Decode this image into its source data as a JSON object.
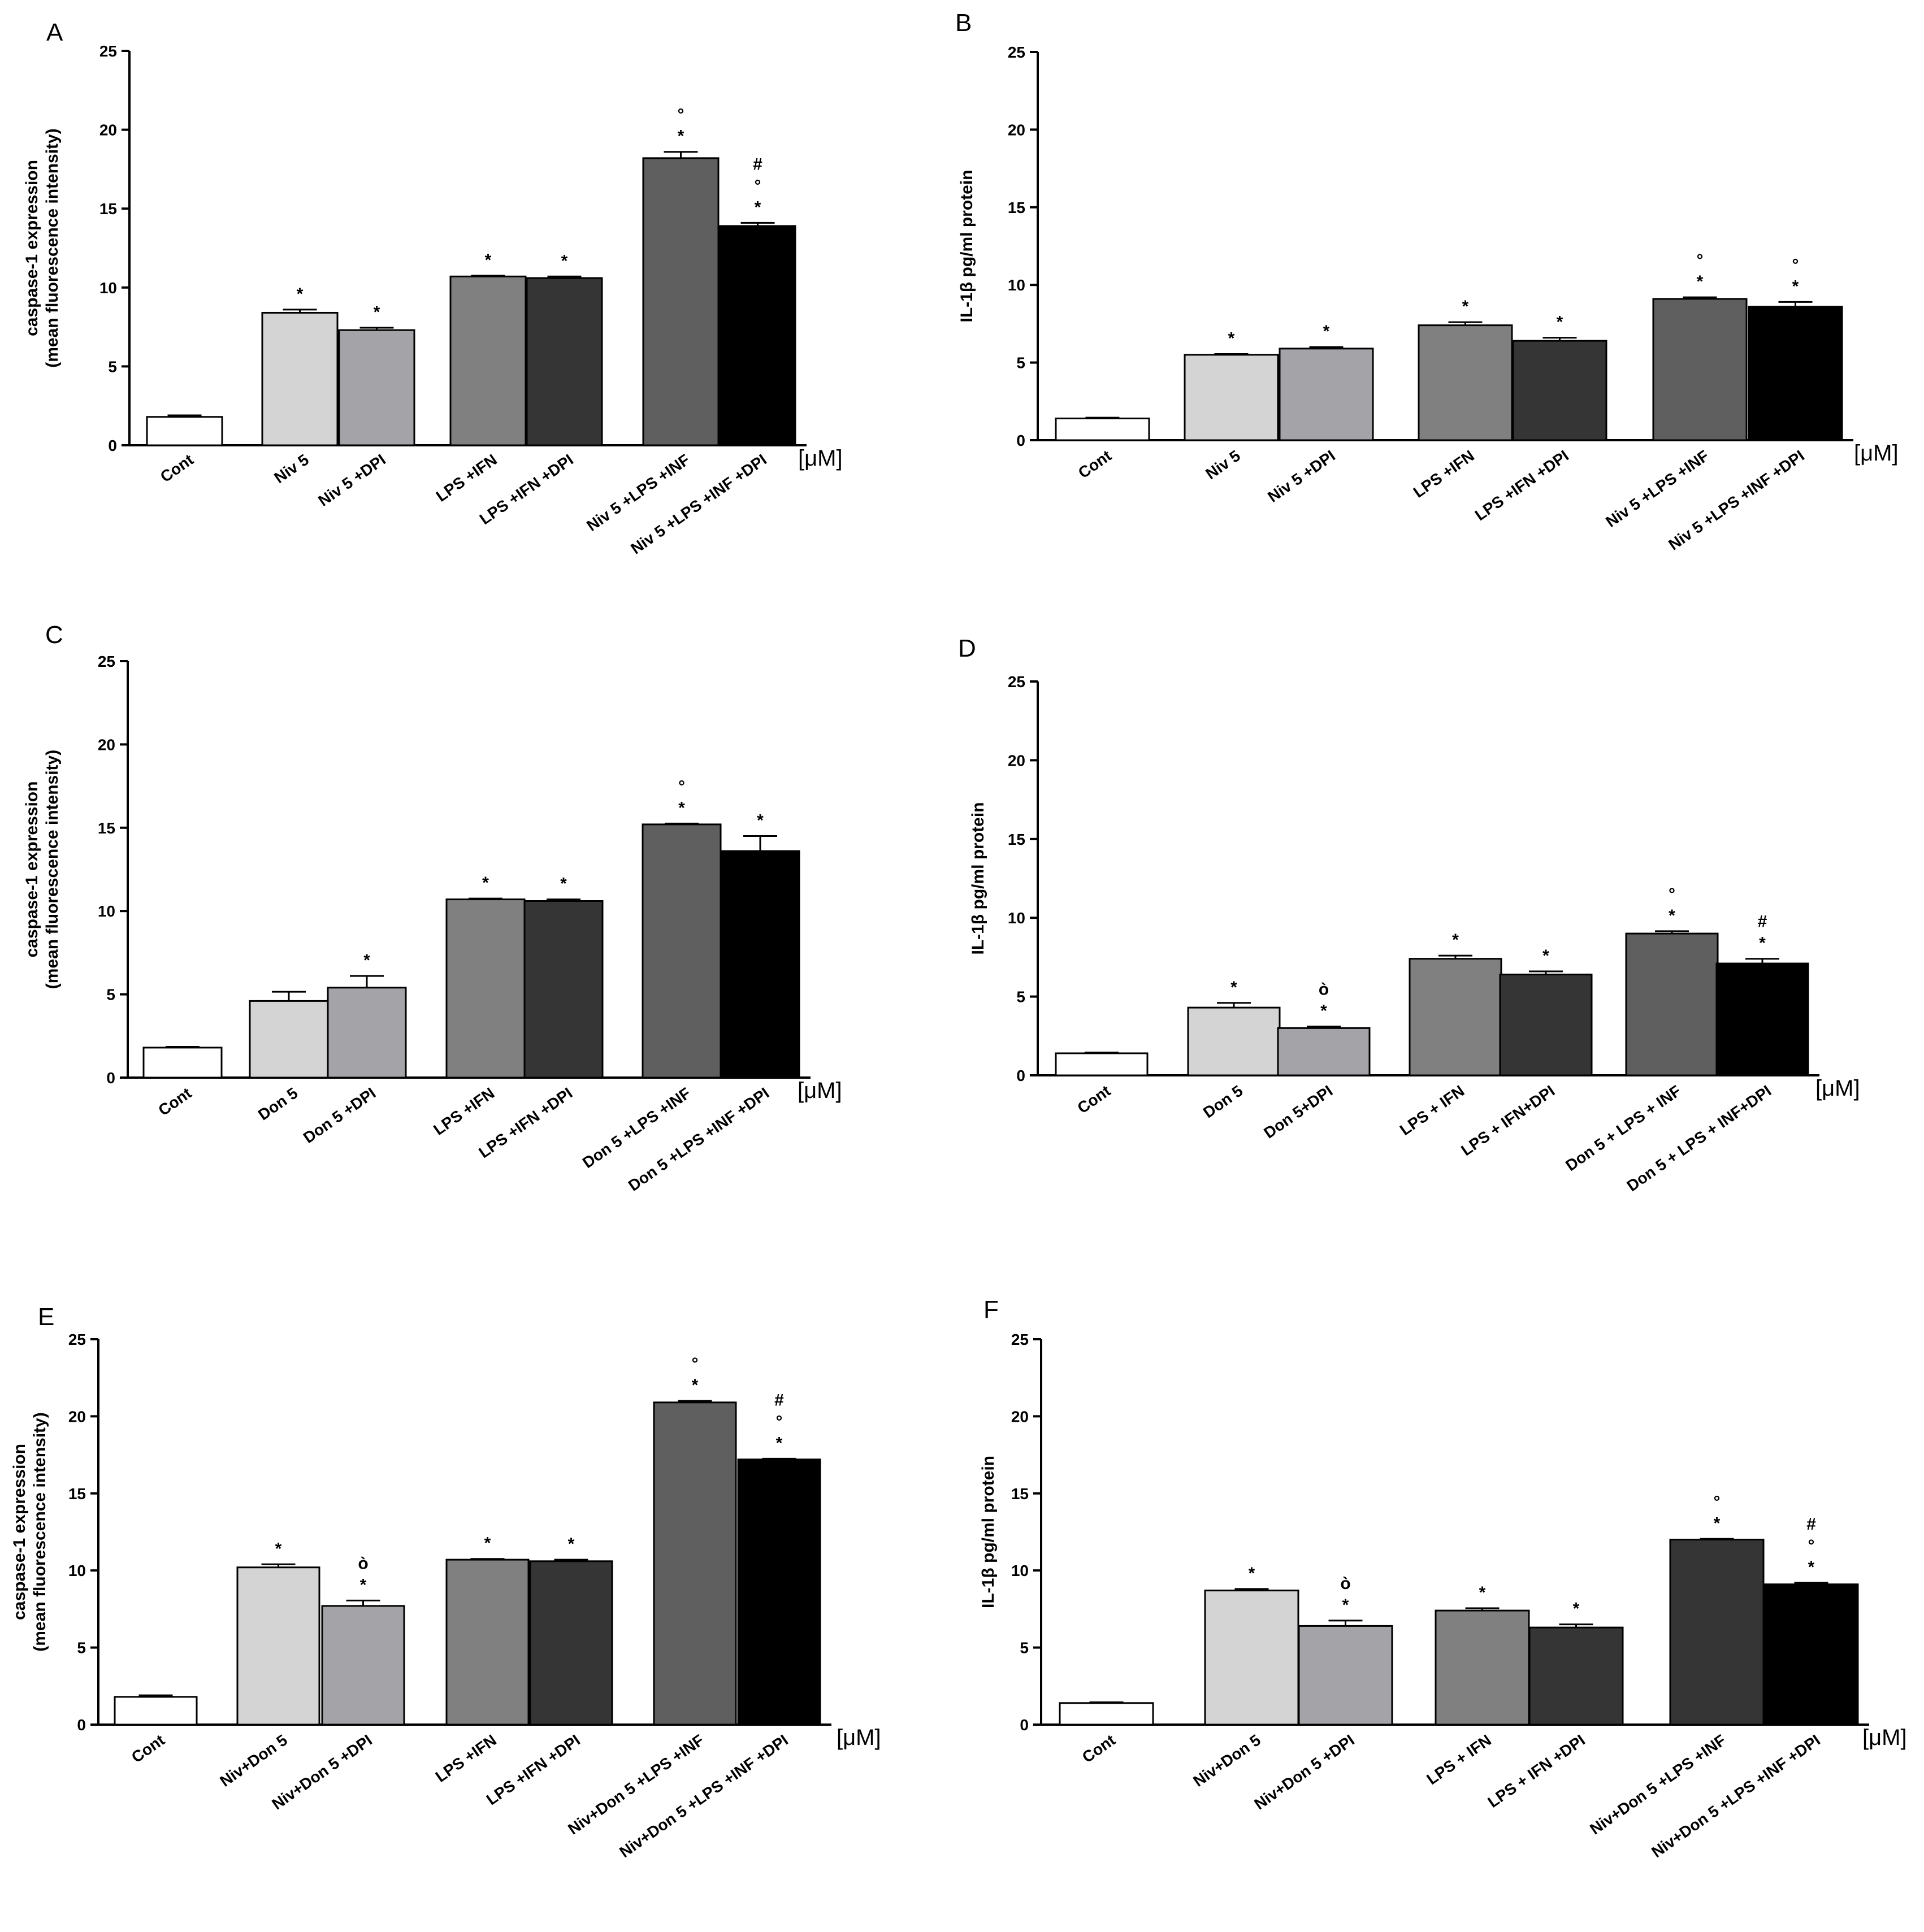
{
  "chart_data": [
    {
      "panel": "A",
      "type": "bar",
      "ylabel": [
        "caspase-1 expression",
        "(mean fluorescence intensity)"
      ],
      "ylim": [
        0,
        25
      ],
      "yticks": [
        0,
        5,
        10,
        15,
        20,
        25
      ],
      "unit": "[μM]",
      "categories": [
        "Cont",
        "Niv 5",
        "Niv 5 +DPI",
        "LPS +IFN",
        "LPS +IFN +DPI",
        "Niv 5 +LPS +INF",
        "Niv 5 +LPS +INF +DPI"
      ],
      "values": [
        1.8,
        8.4,
        7.3,
        10.7,
        10.6,
        18.2,
        13.9
      ],
      "errors": [
        0.1,
        0.2,
        0.15,
        0.05,
        0.1,
        0.4,
        0.2
      ],
      "annotations": [
        [],
        [
          "*"
        ],
        [
          "*"
        ],
        [
          "*"
        ],
        [
          "*"
        ],
        [
          "°",
          "*"
        ],
        [
          "#",
          "°",
          "*"
        ]
      ],
      "colors": [
        "#ffffff",
        "#d4d4d4",
        "#a4a4a8",
        "#808080",
        "#353535",
        "#5f5f5f",
        "#000000"
      ]
    },
    {
      "panel": "B",
      "type": "bar",
      "ylabel": [
        "IL-1β pg/ml protein"
      ],
      "ylim": [
        0,
        25
      ],
      "yticks": [
        0,
        5,
        10,
        15,
        20,
        25
      ],
      "unit": "[μM]",
      "categories": [
        "Cont",
        "Niv 5",
        "Niv 5 +DPI",
        "LPS +IFN",
        "LPS +IFN +DPI",
        "Niv 5 +LPS +INF",
        "Niv 5 +LPS +INF +DPI"
      ],
      "values": [
        1.4,
        5.5,
        5.9,
        7.4,
        6.4,
        9.1,
        8.6
      ],
      "errors": [
        0.05,
        0.05,
        0.1,
        0.2,
        0.2,
        0.1,
        0.3
      ],
      "annotations": [
        [],
        [
          "*"
        ],
        [
          "*"
        ],
        [
          "*"
        ],
        [
          "*"
        ],
        [
          "°",
          "*"
        ],
        [
          "°",
          "*"
        ]
      ],
      "colors": [
        "#ffffff",
        "#d4d4d4",
        "#a4a4a8",
        "#808080",
        "#353535",
        "#5f5f5f",
        "#000000"
      ]
    },
    {
      "panel": "C",
      "type": "bar",
      "ylabel": [
        "caspase-1 expression",
        "(mean fluorescence intensity)"
      ],
      "ylim": [
        0,
        25
      ],
      "yticks": [
        0,
        5,
        10,
        15,
        20,
        25
      ],
      "unit": "[μM]",
      "categories": [
        "Cont",
        "Don 5",
        "Don 5 +DPI",
        "LPS +IFN",
        "LPS +IFN +DPI",
        "Don 5 +LPS +INF",
        "Don 5 +LPS +INF +DPI"
      ],
      "values": [
        1.8,
        4.6,
        5.4,
        10.7,
        10.6,
        15.2,
        13.6
      ],
      "errors": [
        0.05,
        0.55,
        0.7,
        0.05,
        0.1,
        0.05,
        0.9
      ],
      "annotations": [
        [],
        [],
        [
          "*"
        ],
        [
          "*"
        ],
        [
          "*"
        ],
        [
          "°",
          "*"
        ],
        [
          "*"
        ]
      ],
      "colors": [
        "#ffffff",
        "#d4d4d4",
        "#a4a4a8",
        "#808080",
        "#353535",
        "#5f5f5f",
        "#000000"
      ]
    },
    {
      "panel": "D",
      "type": "bar",
      "ylabel": [
        "IL-1β pg/ml protein"
      ],
      "ylim": [
        0,
        25
      ],
      "yticks": [
        0,
        5,
        10,
        15,
        20,
        25
      ],
      "unit": "[μM]",
      "categories": [
        "Cont",
        "Don 5",
        "Don 5+DPI",
        "LPS + IFN",
        "LPS + IFN+DPI",
        "Don 5 + LPS + INF",
        "Don 5 + LPS + INF+DPI"
      ],
      "values": [
        1.4,
        4.3,
        3.0,
        7.4,
        6.4,
        9.0,
        7.1
      ],
      "errors": [
        0.05,
        0.3,
        0.1,
        0.2,
        0.2,
        0.15,
        0.3
      ],
      "annotations": [
        [],
        [
          "*"
        ],
        [
          "ò",
          "*"
        ],
        [
          "*"
        ],
        [
          "*"
        ],
        [
          "°",
          "*"
        ],
        [
          "#",
          "*"
        ]
      ],
      "colors": [
        "#ffffff",
        "#d4d4d4",
        "#a4a4a8",
        "#808080",
        "#353535",
        "#5f5f5f",
        "#000000"
      ]
    },
    {
      "panel": "E",
      "type": "bar",
      "ylabel": [
        "caspase-1 expression",
        "(mean fluorescence intensity)"
      ],
      "ylim": [
        0,
        25
      ],
      "yticks": [
        0,
        5,
        10,
        15,
        20,
        25
      ],
      "unit": "[μM]",
      "categories": [
        "Cont",
        "Niv+Don 5",
        "Niv+Don 5 +DPI",
        "LPS +IFN",
        "LPS +IFN +DPI",
        "Niv+Don 5 +LPS +INF",
        "Niv+Don 5 +LPS +INF +DPI"
      ],
      "values": [
        1.8,
        10.2,
        7.7,
        10.7,
        10.6,
        20.9,
        17.2
      ],
      "errors": [
        0.1,
        0.2,
        0.35,
        0.05,
        0.1,
        0.1,
        0.05
      ],
      "annotations": [
        [],
        [
          "*"
        ],
        [
          "ò",
          "*"
        ],
        [
          "*"
        ],
        [
          "*"
        ],
        [
          "°",
          "*"
        ],
        [
          "#",
          "°",
          "*"
        ]
      ],
      "colors": [
        "#ffffff",
        "#d4d4d4",
        "#a4a4a8",
        "#808080",
        "#353535",
        "#5f5f5f",
        "#000000"
      ]
    },
    {
      "panel": "F",
      "type": "bar",
      "ylabel": [
        "IL-1β pg/ml protein"
      ],
      "ylim": [
        0,
        25
      ],
      "yticks": [
        0,
        5,
        10,
        15,
        20,
        25
      ],
      "unit": "[μM]",
      "categories": [
        "Cont",
        "Niv+Don 5",
        "Niv+Don 5 +DPI",
        "LPS + IFN",
        "LPS + IFN +DPI",
        "Niv+Don 5 +LPS +INF",
        "Niv+Don 5 +LPS +INF +DPI"
      ],
      "values": [
        1.4,
        8.7,
        6.4,
        7.4,
        6.3,
        12.0,
        9.1
      ],
      "errors": [
        0.05,
        0.1,
        0.35,
        0.15,
        0.2,
        0.05,
        0.1
      ],
      "annotations": [
        [],
        [
          "*"
        ],
        [
          "ò",
          "*"
        ],
        [
          "*"
        ],
        [
          "*"
        ],
        [
          "°",
          "*"
        ],
        [
          "#",
          "°",
          "*"
        ]
      ],
      "colors": [
        "#ffffff",
        "#d4d4d4",
        "#a4a4a8",
        "#808080",
        "#353535",
        "#353535",
        "#000000"
      ]
    }
  ]
}
